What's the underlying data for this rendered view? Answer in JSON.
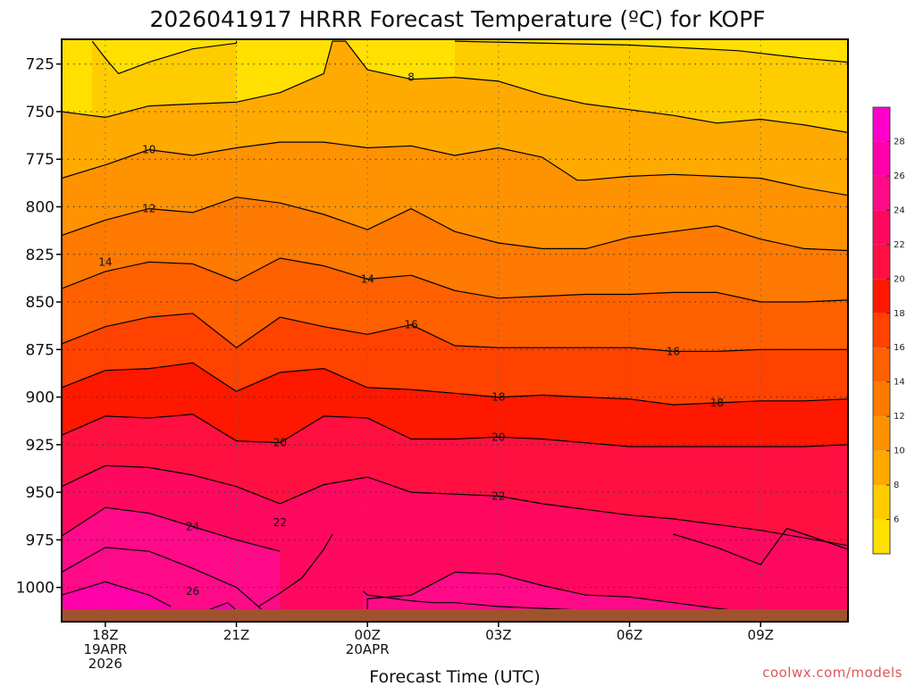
{
  "chart_data": {
    "type": "heatmap",
    "title": "2026041917 HRRR Forecast Temperature (ºC) for KOPF",
    "xlabel": "Forecast Time (UTC)",
    "ylabel": "",
    "x_ticks": [
      {
        "hour": 0,
        "lines": [
          "18Z",
          "19APR",
          "2026"
        ]
      },
      {
        "hour": 3,
        "lines": [
          "21Z"
        ]
      },
      {
        "hour": 6,
        "lines": [
          "00Z",
          "20APR"
        ]
      },
      {
        "hour": 9,
        "lines": [
          "03Z"
        ]
      },
      {
        "hour": 12,
        "lines": [
          "06Z"
        ]
      },
      {
        "hour": 15,
        "lines": [
          "09Z"
        ]
      }
    ],
    "y_ticks": [
      725,
      750,
      775,
      800,
      825,
      850,
      875,
      900,
      925,
      950,
      975,
      1000
    ],
    "x_range_hours": [
      -1,
      17
    ],
    "y_range_hpa": [
      712,
      1018
    ],
    "y_reversed": true,
    "grid": true,
    "colorbar": {
      "ticks": [
        6,
        8,
        10,
        12,
        14,
        16,
        18,
        20,
        22,
        24,
        26,
        28
      ],
      "range": [
        4,
        30
      ],
      "bins": [
        {
          "from": 4,
          "to": 6,
          "color": "#ffe000"
        },
        {
          "from": 6,
          "to": 8,
          "color": "#ffcc00"
        },
        {
          "from": 8,
          "to": 10,
          "color": "#ffaa00"
        },
        {
          "from": 10,
          "to": 12,
          "color": "#ff9200"
        },
        {
          "from": 12,
          "to": 14,
          "color": "#ff7a00"
        },
        {
          "from": 14,
          "to": 16,
          "color": "#ff6000"
        },
        {
          "from": 16,
          "to": 18,
          "color": "#ff4200"
        },
        {
          "from": 18,
          "to": 20,
          "color": "#ff1800"
        },
        {
          "from": 20,
          "to": 22,
          "color": "#ff1040"
        },
        {
          "from": 22,
          "to": 24,
          "color": "#ff0860"
        },
        {
          "from": 24,
          "to": 26,
          "color": "#ff0a88"
        },
        {
          "from": 26,
          "to": 28,
          "color": "#ff00aa"
        },
        {
          "from": 28,
          "to": 30,
          "color": "#ff00cc"
        }
      ]
    },
    "ground_color": "#a0522d",
    "contours": [
      {
        "level": 6,
        "points": [
          [
            -0.3,
            713
          ],
          [
            0,
            722
          ],
          [
            0.3,
            730
          ],
          [
            1,
            724
          ],
          [
            2,
            717
          ],
          [
            3,
            714
          ],
          [
            3,
            713
          ]
        ]
      },
      {
        "level": 6,
        "points": [
          [
            8,
            713
          ],
          [
            12,
            715
          ],
          [
            14.5,
            718
          ],
          [
            16,
            722
          ],
          [
            17,
            724
          ]
        ]
      },
      {
        "level": 8,
        "points": [
          [
            -1,
            750
          ],
          [
            0,
            753
          ],
          [
            1,
            747
          ],
          [
            2,
            746
          ],
          [
            3,
            745
          ],
          [
            4,
            740
          ],
          [
            5,
            730
          ],
          [
            5.2,
            713
          ],
          [
            5.5,
            713
          ],
          [
            6,
            728
          ],
          [
            7,
            733
          ],
          [
            8,
            732
          ],
          [
            9,
            734
          ],
          [
            10,
            741
          ],
          [
            11,
            746
          ],
          [
            12,
            749
          ],
          [
            13,
            752
          ],
          [
            14,
            756
          ],
          [
            15,
            754
          ],
          [
            16,
            757
          ],
          [
            17,
            761
          ]
        ]
      },
      {
        "level": 10,
        "points": [
          [
            -1,
            785
          ],
          [
            0,
            778
          ],
          [
            1,
            770
          ],
          [
            2,
            773
          ],
          [
            3,
            769
          ],
          [
            4,
            766
          ],
          [
            5,
            766
          ],
          [
            6,
            769
          ],
          [
            7,
            768
          ],
          [
            8,
            773
          ],
          [
            9,
            769
          ],
          [
            10,
            774
          ],
          [
            10.8,
            786
          ],
          [
            11,
            786
          ],
          [
            12,
            784
          ],
          [
            13,
            783
          ],
          [
            14,
            784
          ],
          [
            15,
            785
          ],
          [
            16,
            790
          ],
          [
            17,
            794
          ]
        ]
      },
      {
        "level": 12,
        "points": [
          [
            -1,
            815
          ],
          [
            0,
            807
          ],
          [
            1,
            801
          ],
          [
            2,
            803
          ],
          [
            3,
            795
          ],
          [
            4,
            798
          ],
          [
            5,
            804
          ],
          [
            6,
            812
          ],
          [
            7,
            801
          ],
          [
            8,
            813
          ],
          [
            9,
            819
          ],
          [
            10,
            822
          ],
          [
            11,
            822
          ],
          [
            12,
            816
          ],
          [
            13,
            813
          ],
          [
            14,
            810
          ],
          [
            15,
            817
          ],
          [
            16,
            822
          ],
          [
            17,
            823
          ]
        ]
      },
      {
        "level": 14,
        "points": [
          [
            -1,
            843
          ],
          [
            0,
            834
          ],
          [
            1,
            829
          ],
          [
            2,
            830
          ],
          [
            3,
            839
          ],
          [
            4,
            827
          ],
          [
            5,
            831
          ],
          [
            6,
            838
          ],
          [
            7,
            836
          ],
          [
            8,
            844
          ],
          [
            9,
            848
          ],
          [
            10,
            847
          ],
          [
            11,
            846
          ],
          [
            12,
            846
          ],
          [
            13,
            845
          ],
          [
            14,
            845
          ],
          [
            15,
            850
          ],
          [
            16,
            850
          ],
          [
            17,
            849
          ]
        ]
      },
      {
        "level": 16,
        "points": [
          [
            -1,
            872
          ],
          [
            0,
            863
          ],
          [
            1,
            858
          ],
          [
            2,
            856
          ],
          [
            3,
            874
          ],
          [
            4,
            858
          ],
          [
            5,
            863
          ],
          [
            6,
            867
          ],
          [
            7,
            862
          ],
          [
            8,
            873
          ],
          [
            9,
            874
          ],
          [
            10,
            874
          ],
          [
            11,
            874
          ],
          [
            12,
            874
          ],
          [
            13,
            876
          ],
          [
            14,
            876
          ],
          [
            15,
            875
          ],
          [
            16,
            875
          ],
          [
            17,
            875
          ]
        ]
      },
      {
        "level": 18,
        "points": [
          [
            -1,
            895
          ],
          [
            0,
            886
          ],
          [
            1,
            885
          ],
          [
            2,
            882
          ],
          [
            3,
            897
          ],
          [
            4,
            887
          ],
          [
            5,
            885
          ],
          [
            6,
            895
          ],
          [
            7,
            896
          ],
          [
            8,
            898
          ],
          [
            9,
            900
          ],
          [
            10,
            899
          ],
          [
            11,
            900
          ],
          [
            12,
            901
          ],
          [
            13,
            904
          ],
          [
            14,
            903
          ],
          [
            15,
            902
          ],
          [
            16,
            902
          ],
          [
            17,
            901
          ]
        ]
      },
      {
        "level": 20,
        "points": [
          [
            -1,
            920
          ],
          [
            0,
            910
          ],
          [
            1,
            911
          ],
          [
            2,
            909
          ],
          [
            3,
            923
          ],
          [
            4,
            924
          ],
          [
            5,
            910
          ],
          [
            6,
            911
          ],
          [
            7,
            922
          ],
          [
            8,
            922
          ],
          [
            9,
            921
          ],
          [
            10,
            922
          ],
          [
            11,
            924
          ],
          [
            12,
            926
          ],
          [
            13,
            926
          ],
          [
            14,
            926
          ],
          [
            15,
            926
          ],
          [
            16,
            926
          ],
          [
            17,
            925
          ]
        ]
      },
      {
        "level": 22,
        "points": [
          [
            -1,
            947
          ],
          [
            0,
            936
          ],
          [
            1,
            937
          ],
          [
            2,
            941
          ],
          [
            3,
            947
          ],
          [
            4,
            956
          ],
          [
            5,
            946
          ],
          [
            6,
            942
          ],
          [
            7,
            950
          ],
          [
            8,
            951
          ],
          [
            9,
            952
          ],
          [
            10,
            956
          ],
          [
            11,
            959
          ],
          [
            12,
            962
          ],
          [
            13,
            964
          ],
          [
            14,
            967
          ],
          [
            15,
            970
          ],
          [
            16,
            974
          ],
          [
            17,
            978
          ]
        ]
      },
      {
        "level": 22,
        "points": [
          [
            3.5,
            1010
          ],
          [
            4,
            1003
          ],
          [
            4.5,
            995
          ],
          [
            5,
            980
          ],
          [
            5.2,
            972
          ]
        ]
      },
      {
        "level": 22,
        "points": [
          [
            17,
            980
          ],
          [
            16,
            972
          ],
          [
            15.6,
            969
          ],
          [
            15,
            988
          ],
          [
            14,
            979
          ],
          [
            13,
            972
          ]
        ]
      },
      {
        "level": 24,
        "points": [
          [
            -1,
            973
          ],
          [
            0,
            958
          ],
          [
            1,
            961
          ],
          [
            2,
            968
          ],
          [
            3,
            975
          ],
          [
            4,
            981
          ]
        ]
      },
      {
        "level": 24,
        "points": [
          [
            -1,
            992
          ],
          [
            0,
            979
          ],
          [
            1,
            981
          ],
          [
            2,
            990
          ],
          [
            3,
            1000
          ],
          [
            3.6,
            1012
          ]
        ]
      },
      {
        "level": 24,
        "points": [
          [
            6,
            1012
          ],
          [
            6,
            1006
          ],
          [
            7,
            1004
          ],
          [
            8,
            992
          ],
          [
            9,
            993
          ],
          [
            10,
            999
          ],
          [
            11,
            1004
          ],
          [
            12,
            1005
          ],
          [
            13,
            1008
          ],
          [
            14,
            1011
          ],
          [
            14.8,
            1013
          ],
          [
            15,
            1013
          ],
          [
            16,
            1013
          ]
        ]
      },
      {
        "level": 26,
        "points": [
          [
            -1,
            1004
          ],
          [
            0,
            997
          ],
          [
            1,
            1004
          ],
          [
            1.5,
            1010
          ]
        ]
      },
      {
        "level": 26,
        "points": [
          [
            2,
            1015
          ],
          [
            2.8,
            1008
          ],
          [
            3,
            1012
          ],
          [
            3.1,
            1016
          ]
        ]
      },
      {
        "level": 26,
        "points": [
          [
            -0.9,
            1016
          ],
          [
            0,
            1015
          ],
          [
            1,
            1016
          ],
          [
            2,
            1016
          ],
          [
            3,
            1016
          ],
          [
            4,
            1016
          ]
        ]
      },
      {
        "level": 24,
        "points": [
          [
            5.9,
            1002
          ],
          [
            6,
            1004
          ],
          [
            7,
            1007
          ],
          [
            7.5,
            1008
          ],
          [
            8,
            1008
          ],
          [
            9,
            1010
          ],
          [
            10,
            1011
          ],
          [
            11,
            1012
          ],
          [
            11.9,
            1013
          ],
          [
            12.3,
            1015
          ]
        ]
      }
    ],
    "contour_labels": [
      {
        "text": "8",
        "x": 7.0,
        "y": 732
      },
      {
        "text": "10",
        "x": 1.0,
        "y": 770
      },
      {
        "text": "12",
        "x": 1.0,
        "y": 801
      },
      {
        "text": "14",
        "x": 0.0,
        "y": 829
      },
      {
        "text": "14",
        "x": 6.0,
        "y": 838
      },
      {
        "text": "16",
        "x": 7.0,
        "y": 862
      },
      {
        "text": "16",
        "x": 13.0,
        "y": 876
      },
      {
        "text": "18",
        "x": 9.0,
        "y": 900
      },
      {
        "text": "18",
        "x": 14.0,
        "y": 903
      },
      {
        "text": "20",
        "x": 4.0,
        "y": 924
      },
      {
        "text": "20",
        "x": 9.0,
        "y": 921
      },
      {
        "text": "22",
        "x": 9.0,
        "y": 952
      },
      {
        "text": "22",
        "x": 4.0,
        "y": 966
      },
      {
        "text": "24",
        "x": 2.0,
        "y": 968
      },
      {
        "text": "26",
        "x": 2.0,
        "y": 1002
      }
    ],
    "credit": "coolwx.com/models"
  }
}
